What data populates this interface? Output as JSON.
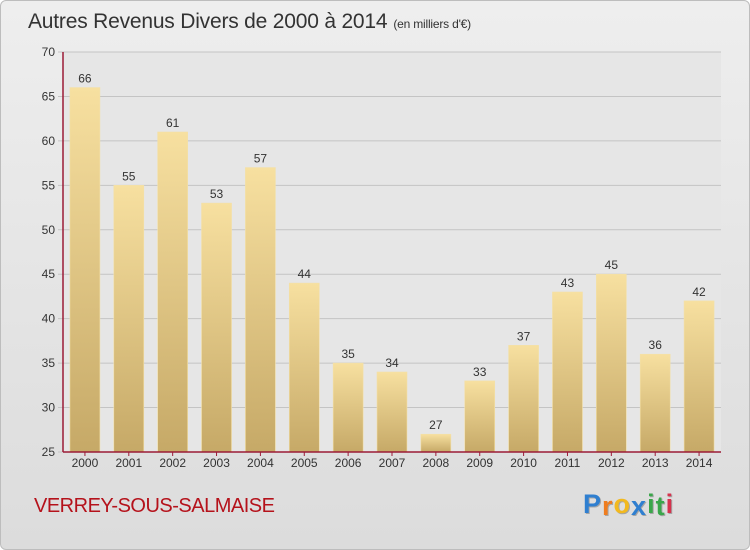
{
  "title": "Autres Revenus Divers de 2000 à 2014",
  "subtitle": "(en milliers d'€)",
  "location": "VERREY-SOUS-SALMAISE",
  "brand": {
    "letters": [
      "P",
      "r",
      "o",
      "x",
      "i",
      "t",
      "i"
    ],
    "colors": [
      "#2f7fd0",
      "#ef7d1f",
      "#f2b91f",
      "#2f7fd0",
      "#3aa64a",
      "#3aa64a",
      "#d6324d"
    ]
  },
  "colors": {
    "bar_light": "#f7e0a0",
    "bar_dark": "#c6a967",
    "axis": "#9b1b36",
    "grid": "#c4c4c4",
    "location_text": "#b5121b"
  },
  "chart_data": {
    "type": "bar",
    "categories": [
      "2000",
      "2001",
      "2002",
      "2003",
      "2004",
      "2005",
      "2006",
      "2007",
      "2008",
      "2009",
      "2010",
      "2011",
      "2012",
      "2013",
      "2014"
    ],
    "values": [
      66,
      55,
      61,
      53,
      57,
      44,
      35,
      34,
      27,
      33,
      37,
      43,
      45,
      36,
      42
    ],
    "data_labels": [
      "66",
      "55",
      "61",
      "53",
      "57",
      "44",
      "35",
      "34",
      "27",
      "33",
      "37",
      "43",
      "45",
      "36",
      "42"
    ],
    "ylim": [
      25,
      70
    ],
    "yticks": [
      "25",
      "30",
      "35",
      "40",
      "45",
      "50",
      "55",
      "60",
      "65",
      "70"
    ],
    "grid": true
  }
}
